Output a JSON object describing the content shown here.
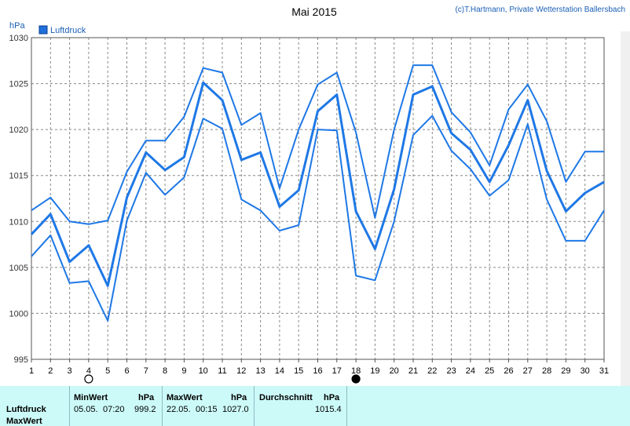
{
  "title": "Mai 2015",
  "credit": "(c)T.Hartmann, Private Wetterstation Ballersbach",
  "y_unit": "hPa",
  "legend": {
    "label": "Luftdruck",
    "color": "#1e6fd9"
  },
  "moon_markers": [
    {
      "day": 4,
      "kind": "full-moon-open"
    },
    {
      "day": 18,
      "kind": "new-moon-filled"
    }
  ],
  "chart_data": {
    "type": "line",
    "title": "Mai 2015",
    "ylabel": "hPa",
    "xlabel": "",
    "ylim": [
      995,
      1030
    ],
    "yticks": [
      995,
      1000,
      1005,
      1010,
      1015,
      1020,
      1025,
      1030
    ],
    "x": [
      1,
      2,
      3,
      4,
      5,
      6,
      7,
      8,
      9,
      10,
      11,
      12,
      13,
      14,
      15,
      16,
      17,
      18,
      19,
      20,
      21,
      22,
      23,
      24,
      25,
      26,
      27,
      28,
      29,
      30,
      31
    ],
    "grid": true,
    "legend_position": "top-left",
    "series": [
      {
        "name": "",
        "role": "max",
        "values": [
          1011.2,
          1012.6,
          1010.0,
          1009.7,
          1010.1,
          1015.4,
          1018.8,
          1018.8,
          1021.4,
          1026.7,
          1026.2,
          1020.5,
          1021.8,
          1013.6,
          1020.0,
          1024.9,
          1026.2,
          1019.7,
          1010.4,
          1020.0,
          1027.0,
          1027.0,
          1021.9,
          1019.7,
          1016.1,
          1022.2,
          1024.9,
          1020.9,
          1014.3,
          1017.6,
          1017.6
        ]
      },
      {
        "name": "Luftdruck",
        "role": "mean",
        "values": [
          1008.6,
          1010.8,
          1005.6,
          1007.4,
          1003.0,
          1012.6,
          1017.5,
          1015.6,
          1017.0,
          1025.1,
          1023.2,
          1016.7,
          1017.5,
          1011.6,
          1013.4,
          1022.0,
          1023.8,
          1011.1,
          1007.0,
          1013.5,
          1023.8,
          1024.7,
          1019.6,
          1017.8,
          1014.3,
          1018.3,
          1023.2,
          1015.5,
          1011.1,
          1013.1,
          1014.3
        ]
      },
      {
        "name": "",
        "role": "min",
        "values": [
          1006.2,
          1008.5,
          1003.3,
          1003.5,
          999.2,
          1010.1,
          1015.3,
          1012.9,
          1014.8,
          1021.2,
          1020.1,
          1012.4,
          1011.2,
          1009.0,
          1009.6,
          1020.0,
          1019.9,
          1004.1,
          1003.6,
          1010.0,
          1019.4,
          1021.5,
          1017.7,
          1015.7,
          1012.8,
          1014.5,
          1020.6,
          1012.4,
          1007.9,
          1007.9,
          1011.2
        ]
      }
    ]
  },
  "stats": {
    "headers": {
      "min": "MinWert",
      "min_unit": "hPa",
      "max": "MaxWert",
      "max_unit": "hPa",
      "avg": "Durchschnitt",
      "avg_unit": "hPa"
    },
    "row_labels": [
      "Luftdruck",
      "MaxWert"
    ],
    "min_date": "05.05.",
    "min_time": "07:20",
    "min_value": "999.2",
    "max_date": "22.05.",
    "max_time": "00:15",
    "max_value": "1027.0",
    "avg_value": "1015.4"
  }
}
